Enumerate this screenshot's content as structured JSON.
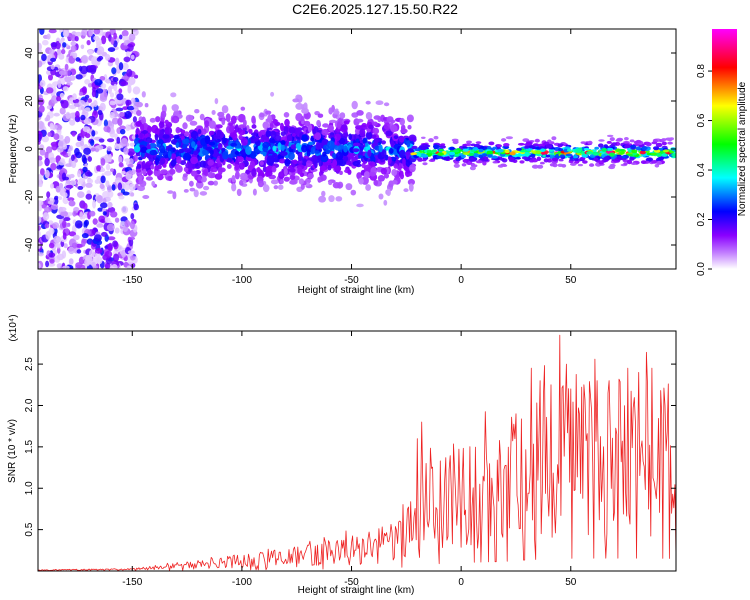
{
  "title": "C2E6.2025.127.15.50.R22",
  "chart_data": [
    {
      "type": "heatmap",
      "xlabel": "Height of straight line (km)",
      "ylabel": "Frequency (Hz)",
      "xlim": [
        -193,
        98
      ],
      "ylim": [
        -50,
        50
      ],
      "x_ticks": [
        -150,
        -100,
        -50,
        0,
        50
      ],
      "y_ticks": [
        -40,
        -20,
        0,
        20,
        40
      ],
      "colorbar": {
        "label": "Normalized spectral amplitude",
        "range": [
          0,
          0.97
        ],
        "ticks": [
          0.0,
          0.2,
          0.4,
          0.6,
          0.8
        ],
        "colors": [
          "#ffffff",
          "#9d00ff",
          "#0000ff",
          "#00ffff",
          "#00ff00",
          "#ffff00",
          "#ff0000",
          "#ff00ff"
        ]
      },
      "regions": [
        {
          "x": [
            -193,
            -148
          ],
          "center_hz": 0,
          "spread_hz": 50,
          "amplitude": 0.15
        },
        {
          "x": [
            -148,
            -22
          ],
          "center_hz": 0,
          "spread_hz": 14,
          "amplitude": 0.3
        },
        {
          "x": [
            -22,
            98
          ],
          "center_hz": -1.5,
          "spread_hz": 3,
          "amplitude": 0.9
        }
      ]
    },
    {
      "type": "line",
      "xlabel": "Height of straight line (km)",
      "ylabel": "SNR (10 * v/v)",
      "y_multiplier": "(x10⁴)",
      "xlim": [
        -193,
        98
      ],
      "ylim": [
        0,
        2.9
      ],
      "x_ticks": [
        -150,
        -100,
        -50,
        0,
        50
      ],
      "y_ticks": [
        0.5,
        1.0,
        1.5,
        2.0,
        2.5
      ],
      "color": "#ee2222",
      "x_step": 0.5,
      "trend": [
        {
          "x": -193,
          "y": 0.01
        },
        {
          "x": -150,
          "y": 0.02
        },
        {
          "x": -130,
          "y": 0.06
        },
        {
          "x": -100,
          "y": 0.13
        },
        {
          "x": -70,
          "y": 0.2
        },
        {
          "x": -50,
          "y": 0.28
        },
        {
          "x": -30,
          "y": 0.38
        },
        {
          "x": -20,
          "y": 0.6
        },
        {
          "x": -15,
          "y": 0.85
        },
        {
          "x": -5,
          "y": 0.92
        },
        {
          "x": 5,
          "y": 1.05
        },
        {
          "x": 20,
          "y": 1.15
        },
        {
          "x": 30,
          "y": 1.35
        },
        {
          "x": 45,
          "y": 1.5
        },
        {
          "x": 60,
          "y": 1.55
        },
        {
          "x": 80,
          "y": 1.55
        },
        {
          "x": 98,
          "y": 1.5
        }
      ],
      "peaks": [
        {
          "x": -20,
          "y": 1.6
        },
        {
          "x": -18,
          "y": 1.8
        },
        {
          "x": -16,
          "y": 1.3
        },
        {
          "x": 25,
          "y": 1.9
        },
        {
          "x": 32,
          "y": 2.45
        },
        {
          "x": 36,
          "y": 2.3
        },
        {
          "x": 41,
          "y": 2.25
        },
        {
          "x": 45,
          "y": 2.85
        },
        {
          "x": 48,
          "y": 2.5
        },
        {
          "x": 50,
          "y": 2.2
        },
        {
          "x": 56,
          "y": 2.25
        },
        {
          "x": 62,
          "y": 2.3
        },
        {
          "x": 67,
          "y": 2.15
        },
        {
          "x": 76,
          "y": 2.45
        },
        {
          "x": 87,
          "y": 2.45
        },
        {
          "x": 93,
          "y": 2.0
        }
      ]
    }
  ]
}
